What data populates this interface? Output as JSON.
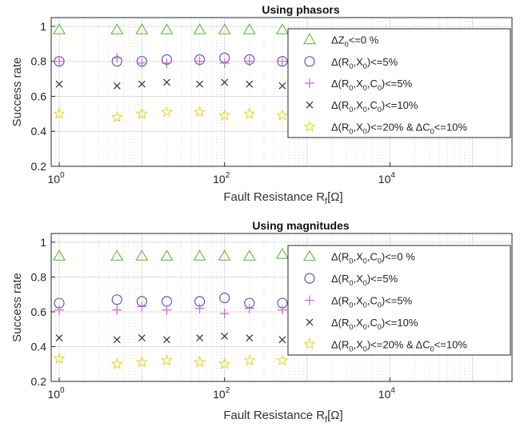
{
  "chart_data": [
    {
      "type": "scatter",
      "title": "Using phasors",
      "xlabel": "Fault Resistance R",
      "xlabel_sub": "f",
      "xlabel_unit": "[Ω]",
      "ylabel": "Success rate",
      "xscale": "log",
      "xlim": [
        0.8,
        300000
      ],
      "ylim": [
        0.2,
        1.05
      ],
      "yticks": [
        "0.2",
        "0.4",
        "0.6",
        "0.8",
        "1"
      ],
      "xticks": [
        {
          "base": "10",
          "exp": "0",
          "value": 1
        },
        {
          "base": "10",
          "exp": "2",
          "value": 100
        },
        {
          "base": "10",
          "exp": "4",
          "value": 10000
        }
      ],
      "grid": true,
      "legend_position": "top-right",
      "x": [
        1,
        5,
        10,
        20,
        50,
        100,
        200,
        500
      ],
      "series": [
        {
          "legend": [
            {
              "t": "Δ"
            },
            {
              "t": "Z"
            },
            {
              "t": "0",
              "sub": true
            },
            {
              "t": "<=0 %"
            }
          ],
          "marker": "triangle",
          "color": "#6abf4b",
          "values": [
            0.98,
            0.98,
            0.98,
            0.98,
            0.98,
            0.98,
            0.98,
            0.98
          ]
        },
        {
          "legend": [
            {
              "t": "Δ(R"
            },
            {
              "t": "0",
              "sub": true
            },
            {
              "t": ",X"
            },
            {
              "t": "0",
              "sub": true
            },
            {
              "t": ")<=5%"
            }
          ],
          "marker": "circle",
          "color": "#5b5bbf",
          "values": [
            0.8,
            0.8,
            0.8,
            0.81,
            0.81,
            0.82,
            0.81,
            0.8
          ]
        },
        {
          "legend": [
            {
              "t": "Δ(R"
            },
            {
              "t": "0",
              "sub": true
            },
            {
              "t": ",X"
            },
            {
              "t": "0",
              "sub": true
            },
            {
              "t": ",C"
            },
            {
              "t": "0",
              "sub": true
            },
            {
              "t": ")<=5%"
            }
          ],
          "marker": "plus",
          "color": "#cc66cc",
          "values": [
            0.8,
            0.82,
            0.79,
            0.79,
            0.8,
            0.79,
            0.8,
            0.8
          ]
        },
        {
          "legend": [
            {
              "t": "Δ(R"
            },
            {
              "t": "0",
              "sub": true
            },
            {
              "t": ",X"
            },
            {
              "t": "0",
              "sub": true
            },
            {
              "t": ",C"
            },
            {
              "t": "0",
              "sub": true
            },
            {
              "t": ")<=10%"
            }
          ],
          "marker": "cross",
          "color": "#333333",
          "values": [
            0.67,
            0.66,
            0.67,
            0.68,
            0.67,
            0.68,
            0.67,
            0.66
          ]
        },
        {
          "legend": [
            {
              "t": "Δ(R"
            },
            {
              "t": "0",
              "sub": true
            },
            {
              "t": ",X"
            },
            {
              "t": "0",
              "sub": true
            },
            {
              "t": ")<=20% & ΔC"
            },
            {
              "t": "0",
              "sub": true
            },
            {
              "t": "<=10%"
            }
          ],
          "marker": "star",
          "color": "#e6d92e",
          "values": [
            0.5,
            0.48,
            0.5,
            0.51,
            0.51,
            0.49,
            0.5,
            0.49
          ]
        }
      ]
    },
    {
      "type": "scatter",
      "title": "Using magnitudes",
      "xlabel": "Fault Resistance R",
      "xlabel_sub": "f",
      "xlabel_unit": "[Ω]",
      "ylabel": "Success rate",
      "xscale": "log",
      "xlim": [
        0.8,
        300000
      ],
      "ylim": [
        0.2,
        1.05
      ],
      "yticks": [
        "0.2",
        "0.4",
        "0.6",
        "0.8",
        "1"
      ],
      "xticks": [
        {
          "base": "10",
          "exp": "0",
          "value": 1
        },
        {
          "base": "10",
          "exp": "2",
          "value": 100
        },
        {
          "base": "10",
          "exp": "4",
          "value": 10000
        }
      ],
      "grid": true,
      "legend_position": "top-right",
      "x": [
        1,
        5,
        10,
        20,
        50,
        100,
        200,
        500
      ],
      "series": [
        {
          "legend": [
            {
              "t": "Δ(R"
            },
            {
              "t": "0",
              "sub": true
            },
            {
              "t": ",X"
            },
            {
              "t": "0",
              "sub": true
            },
            {
              "t": ",C"
            },
            {
              "t": "0",
              "sub": true
            },
            {
              "t": ")<=0 %"
            }
          ],
          "marker": "triangle",
          "color": "#6abf4b",
          "values": [
            0.92,
            0.92,
            0.92,
            0.92,
            0.92,
            0.92,
            0.92,
            0.93
          ]
        },
        {
          "legend": [
            {
              "t": "Δ(R"
            },
            {
              "t": "0",
              "sub": true
            },
            {
              "t": ",X"
            },
            {
              "t": "0",
              "sub": true
            },
            {
              "t": ")<=5%"
            }
          ],
          "marker": "circle",
          "color": "#5b5bbf",
          "values": [
            0.65,
            0.67,
            0.66,
            0.66,
            0.66,
            0.68,
            0.65,
            0.65
          ]
        },
        {
          "legend": [
            {
              "t": "Δ(R"
            },
            {
              "t": "0",
              "sub": true
            },
            {
              "t": ",X"
            },
            {
              "t": "0",
              "sub": true
            },
            {
              "t": ",C"
            },
            {
              "t": "0",
              "sub": true
            },
            {
              "t": ")<=5%"
            }
          ],
          "marker": "plus",
          "color": "#cc66cc",
          "values": [
            0.61,
            0.61,
            0.63,
            0.61,
            0.62,
            0.59,
            0.62,
            0.61
          ]
        },
        {
          "legend": [
            {
              "t": "Δ(R"
            },
            {
              "t": "0",
              "sub": true
            },
            {
              "t": ",X"
            },
            {
              "t": "0",
              "sub": true
            },
            {
              "t": ",C"
            },
            {
              "t": "0",
              "sub": true
            },
            {
              "t": ")<=10%"
            }
          ],
          "marker": "cross",
          "color": "#333333",
          "values": [
            0.45,
            0.44,
            0.45,
            0.44,
            0.45,
            0.46,
            0.45,
            0.44
          ]
        },
        {
          "legend": [
            {
              "t": "Δ(R"
            },
            {
              "t": "0",
              "sub": true
            },
            {
              "t": ",X"
            },
            {
              "t": "0",
              "sub": true
            },
            {
              "t": ")<=20% & ΔC"
            },
            {
              "t": "0",
              "sub": true
            },
            {
              "t": "<=10%"
            }
          ],
          "marker": "star",
          "color": "#e6d92e",
          "values": [
            0.33,
            0.3,
            0.31,
            0.32,
            0.31,
            0.3,
            0.32,
            0.32
          ]
        }
      ]
    }
  ]
}
